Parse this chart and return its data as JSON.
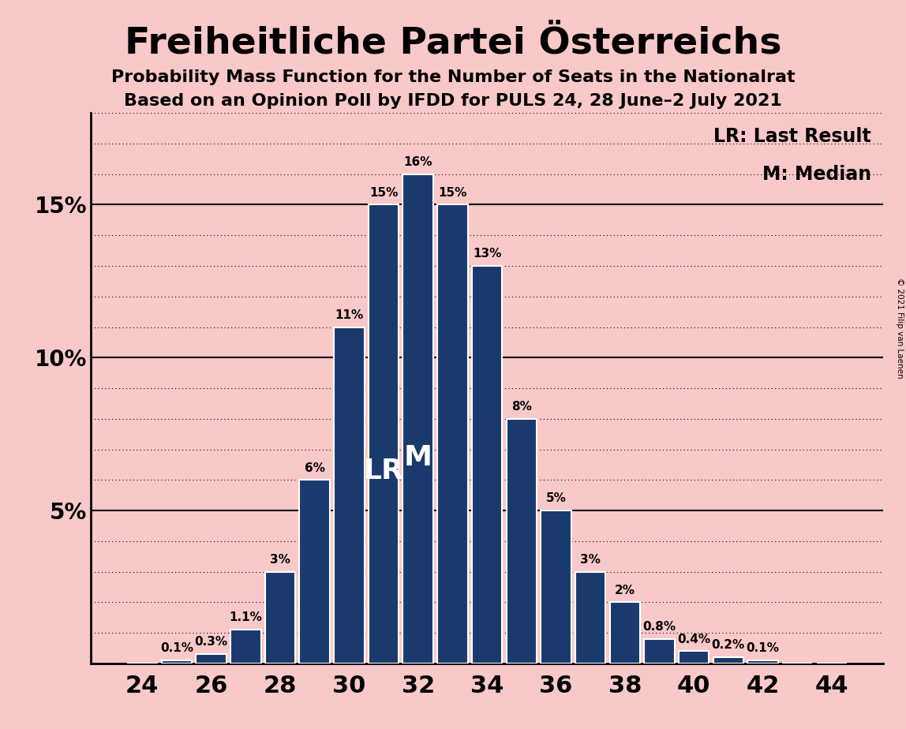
{
  "title": "Freiheitliche Partei Österreichs",
  "subtitle1": "Probability Mass Function for the Number of Seats in the Nationalrat",
  "subtitle2": "Based on an Opinion Poll by IFDD for PULS 24, 28 June–2 July 2021",
  "copyright": "© 2021 Filip van Laenen",
  "seats": [
    24,
    25,
    26,
    27,
    28,
    29,
    30,
    31,
    32,
    33,
    34,
    35,
    36,
    37,
    38,
    39,
    40,
    41,
    42,
    43,
    44
  ],
  "probabilities": [
    0.0,
    0.1,
    0.3,
    1.1,
    3.0,
    6.0,
    11.0,
    15.0,
    16.0,
    15.0,
    13.0,
    8.0,
    5.0,
    3.0,
    2.0,
    0.8,
    0.4,
    0.2,
    0.1,
    0.0,
    0.0
  ],
  "bar_color": "#1a3a6e",
  "background_color": "#f9c8c8",
  "lr_seat": 31,
  "median_seat": 32,
  "major_yticks": [
    5,
    10,
    15
  ],
  "minor_ytick_interval": 1,
  "ylim": [
    0,
    18
  ],
  "xlim": [
    22.5,
    45.5
  ],
  "xlabel_seats": [
    24,
    26,
    28,
    30,
    32,
    34,
    36,
    38,
    40,
    42,
    44
  ],
  "title_fontsize": 34,
  "subtitle_fontsize": 16,
  "ytick_fontsize": 20,
  "xtick_fontsize": 22,
  "bar_label_fontsize": 11,
  "lr_m_fontsize": 26,
  "legend_fontsize": 17,
  "copyright_fontsize": 7.5
}
